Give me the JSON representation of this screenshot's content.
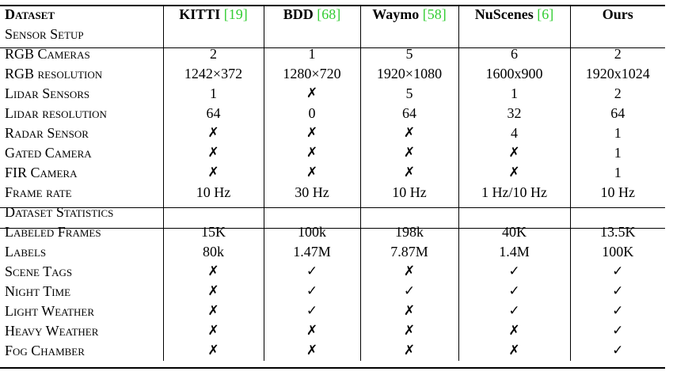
{
  "header": {
    "row_label_1": "Dataset",
    "row_label_2": "Sensor Setup",
    "columns": [
      {
        "name": "KITTI",
        "ref": "[19]"
      },
      {
        "name": "BDD",
        "ref": "[68]"
      },
      {
        "name": "Waymo",
        "ref": "[58]"
      },
      {
        "name": "NuScenes",
        "ref": "[6]"
      },
      {
        "name": "Ours",
        "ref": ""
      }
    ]
  },
  "sensor_rows": [
    {
      "label": "RGB Cameras",
      "values": [
        "2",
        "1",
        "5",
        "6",
        "2"
      ]
    },
    {
      "label": "RGB resolution",
      "values": [
        "1242×372",
        "1280×720",
        "1920×1080",
        "1600x900",
        "1920x1024"
      ]
    },
    {
      "label": "Lidar Sensors",
      "values": [
        "1",
        "✗",
        "5",
        "1",
        "2"
      ]
    },
    {
      "label": "Lidar resolution",
      "values": [
        "64",
        "0",
        "64",
        "32",
        "64"
      ]
    },
    {
      "label": "Radar Sensor",
      "values": [
        "✗",
        "✗",
        "✗",
        "4",
        "1"
      ]
    },
    {
      "label": "Gated Camera",
      "values": [
        "✗",
        "✗",
        "✗",
        "✗",
        "1"
      ]
    },
    {
      "label": "FIR Camera",
      "values": [
        "✗",
        "✗",
        "✗",
        "✗",
        "1"
      ]
    },
    {
      "label": "Frame rate",
      "values": [
        "10 Hz",
        "30 Hz",
        "10 Hz",
        "1 Hz/10 Hz",
        "10 Hz"
      ]
    }
  ],
  "stats_section_label": "Dataset Statistics",
  "stats_rows": [
    {
      "label": "Labeled Frames",
      "values": [
        "15K",
        "100k",
        "198k",
        "40K",
        "13.5K"
      ]
    },
    {
      "label": "Labels",
      "values": [
        "80k",
        "1.47M",
        "7.87M",
        "1.4M",
        "100K"
      ]
    },
    {
      "label": "Scene Tags",
      "values": [
        "✗",
        "✓",
        "✗",
        "✓",
        "✓"
      ]
    },
    {
      "label": "Night Time",
      "values": [
        "✗",
        "✓",
        "✓",
        "✓",
        "✓"
      ]
    },
    {
      "label": "Light Weather",
      "values": [
        "✗",
        "✓",
        "✗",
        "✓",
        "✓"
      ]
    },
    {
      "label": "Heavy Weather",
      "values": [
        "✗",
        "✗",
        "✗",
        "✗",
        "✓"
      ]
    },
    {
      "label": "Fog Chamber",
      "values": [
        "✗",
        "✗",
        "✗",
        "✗",
        "✓"
      ]
    }
  ],
  "colors": {
    "reference": "#32cd32",
    "text": "#000000",
    "rule": "#000000"
  }
}
